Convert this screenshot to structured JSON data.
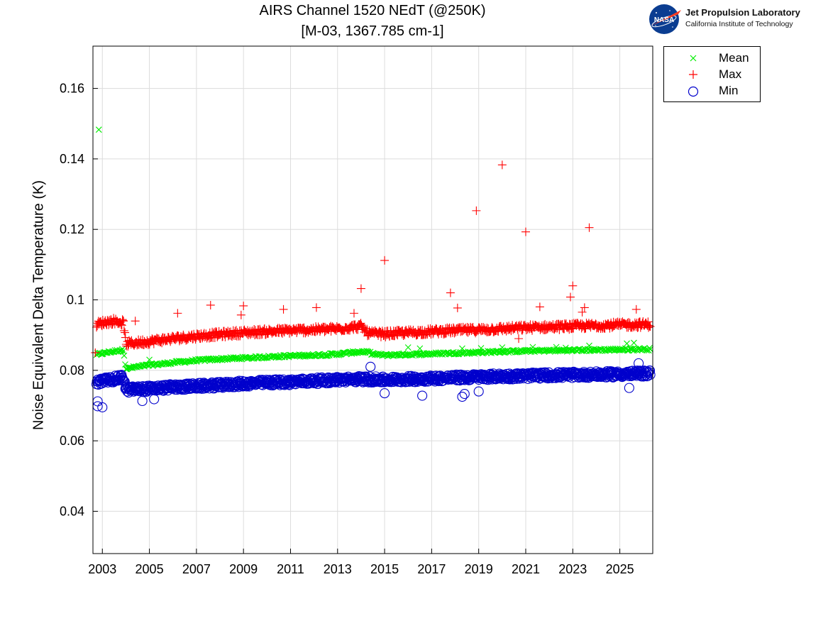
{
  "header": {
    "title_line1": "AIRS Channel 1520 NEdT (@250K)",
    "title_line2": "[M-03, 1367.785 cm-1]"
  },
  "logo": {
    "org_name": "Jet Propulsion Laboratory",
    "institution": "California Institute of Technology",
    "badge_text": "NASA"
  },
  "legend": {
    "items": [
      {
        "label": "Mean",
        "marker": "x",
        "color": "#00ee00"
      },
      {
        "label": "Max",
        "marker": "+",
        "color": "#ff0000"
      },
      {
        "label": "Min",
        "marker": "o",
        "color": "#0000cc"
      }
    ]
  },
  "chart_data": {
    "type": "scatter",
    "title": "AIRS Channel 1520 NEdT (@250K) [M-03, 1367.785 cm-1]",
    "xlabel": "",
    "ylabel": "Noise Equivalent Delta Temperature (K)",
    "xlim": [
      2002.6,
      2026.4
    ],
    "ylim": [
      0.028,
      0.172
    ],
    "x_ticks": [
      2003,
      2005,
      2007,
      2009,
      2011,
      2013,
      2015,
      2017,
      2019,
      2021,
      2023,
      2025
    ],
    "x_tick_labels": [
      "2003",
      "2005",
      "2007",
      "2009",
      "2011",
      "2013",
      "2015",
      "2017",
      "2019",
      "2021",
      "2023",
      "2025"
    ],
    "y_ticks": [
      0.04,
      0.06,
      0.08,
      0.1,
      0.12,
      0.14,
      0.16
    ],
    "y_tick_labels": [
      "0.04",
      "0.06",
      "0.08",
      "0.1",
      "0.12",
      "0.14",
      "0.16"
    ],
    "grid": true,
    "legend_position": "outside-top-right",
    "series": [
      {
        "name": "Mean",
        "marker": "x",
        "color": "#00ee00",
        "x": [
          2002.75,
          2003.0,
          2003.3,
          2003.6,
          2003.9,
          2004.0,
          2004.5,
          2005.0,
          2005.5,
          2006.0,
          2007.0,
          2008.0,
          2009.0,
          2010.0,
          2011.0,
          2012.0,
          2013.0,
          2014.0,
          2014.3,
          2014.6,
          2015.0,
          2016.0,
          2017.0,
          2018.0,
          2019.0,
          2020.0,
          2021.0,
          2022.0,
          2023.0,
          2024.0,
          2025.0,
          2026.0,
          2026.3
        ],
        "y": [
          0.0845,
          0.0848,
          0.0852,
          0.0855,
          0.0858,
          0.0805,
          0.081,
          0.0815,
          0.0818,
          0.0822,
          0.0828,
          0.0832,
          0.0835,
          0.0838,
          0.0841,
          0.0843,
          0.0846,
          0.0853,
          0.0851,
          0.0845,
          0.0843,
          0.0845,
          0.0847,
          0.0849,
          0.0851,
          0.0853,
          0.0855,
          0.0856,
          0.0857,
          0.0858,
          0.0859,
          0.086,
          0.086
        ],
        "outliers": [
          [
            2002.85,
            0.1483
          ],
          [
            2005.0,
            0.083
          ],
          [
            2016.0,
            0.0865
          ],
          [
            2016.5,
            0.0862
          ],
          [
            2018.3,
            0.0862
          ],
          [
            2019.1,
            0.0863
          ],
          [
            2020.0,
            0.0865
          ],
          [
            2021.3,
            0.0866
          ],
          [
            2022.3,
            0.0866
          ],
          [
            2022.7,
            0.0864
          ],
          [
            2023.7,
            0.087
          ],
          [
            2025.3,
            0.0876
          ],
          [
            2025.6,
            0.0878
          ]
        ]
      },
      {
        "name": "Max",
        "marker": "+",
        "color": "#ff0000",
        "x": [
          2002.75,
          2003.0,
          2003.5,
          2003.9,
          2004.0,
          2005.0,
          2006.0,
          2007.0,
          2008.0,
          2009.0,
          2010.0,
          2011.0,
          2012.0,
          2013.0,
          2014.0,
          2014.3,
          2015.0,
          2016.0,
          2017.0,
          2018.0,
          2019.0,
          2020.0,
          2021.0,
          2022.0,
          2023.0,
          2024.0,
          2025.0,
          2026.0,
          2026.3
        ],
        "y": [
          0.093,
          0.0935,
          0.094,
          0.0935,
          0.0875,
          0.0882,
          0.089,
          0.0897,
          0.0902,
          0.0907,
          0.091,
          0.0913,
          0.0915,
          0.0918,
          0.0925,
          0.0905,
          0.0903,
          0.0907,
          0.091,
          0.0913,
          0.0915,
          0.0918,
          0.0921,
          0.0923,
          0.0925,
          0.0927,
          0.0929,
          0.093,
          0.093
        ],
        "outliers": [
          [
            2002.7,
            0.085
          ],
          [
            2004.4,
            0.094
          ],
          [
            2006.2,
            0.0962
          ],
          [
            2007.6,
            0.0985
          ],
          [
            2008.9,
            0.0957
          ],
          [
            2009.0,
            0.0983
          ],
          [
            2010.7,
            0.0973
          ],
          [
            2012.1,
            0.0978
          ],
          [
            2013.7,
            0.0962
          ],
          [
            2014.0,
            0.1032
          ],
          [
            2015.0,
            0.1112
          ],
          [
            2017.8,
            0.102
          ],
          [
            2018.1,
            0.0977
          ],
          [
            2018.9,
            0.1253
          ],
          [
            2020.0,
            0.1383
          ],
          [
            2020.7,
            0.089
          ],
          [
            2021.0,
            0.1193
          ],
          [
            2021.6,
            0.098
          ],
          [
            2022.9,
            0.1008
          ],
          [
            2023.0,
            0.104
          ],
          [
            2023.4,
            0.0965
          ],
          [
            2023.5,
            0.0978
          ],
          [
            2023.7,
            0.1205
          ],
          [
            2025.7,
            0.0973
          ]
        ]
      },
      {
        "name": "Min",
        "marker": "o",
        "color": "#0000cc",
        "x": [
          2002.75,
          2003.0,
          2003.5,
          2003.9,
          2004.0,
          2005.0,
          2006.0,
          2007.0,
          2008.0,
          2009.0,
          2010.0,
          2011.0,
          2012.0,
          2013.0,
          2014.0,
          2015.0,
          2016.0,
          2017.0,
          2018.0,
          2019.0,
          2020.0,
          2021.0,
          2022.0,
          2023.0,
          2024.0,
          2025.0,
          2026.0,
          2026.3
        ],
        "y": [
          0.0765,
          0.077,
          0.0775,
          0.078,
          0.0745,
          0.0748,
          0.0752,
          0.0755,
          0.0758,
          0.0762,
          0.0765,
          0.0767,
          0.077,
          0.0773,
          0.0775,
          0.0773,
          0.0775,
          0.0777,
          0.0779,
          0.0781,
          0.0783,
          0.0784,
          0.0786,
          0.0787,
          0.0788,
          0.0789,
          0.0791,
          0.0792
        ],
        "outliers": [
          [
            2002.8,
            0.0698
          ],
          [
            2002.8,
            0.0712
          ],
          [
            2003.0,
            0.0695
          ],
          [
            2004.7,
            0.0713
          ],
          [
            2005.2,
            0.0718
          ],
          [
            2014.4,
            0.081
          ],
          [
            2015.0,
            0.0735
          ],
          [
            2016.6,
            0.0728
          ],
          [
            2018.3,
            0.0725
          ],
          [
            2018.4,
            0.0733
          ],
          [
            2019.0,
            0.074
          ],
          [
            2025.4,
            0.075
          ],
          [
            2025.8,
            0.082
          ]
        ]
      }
    ]
  }
}
